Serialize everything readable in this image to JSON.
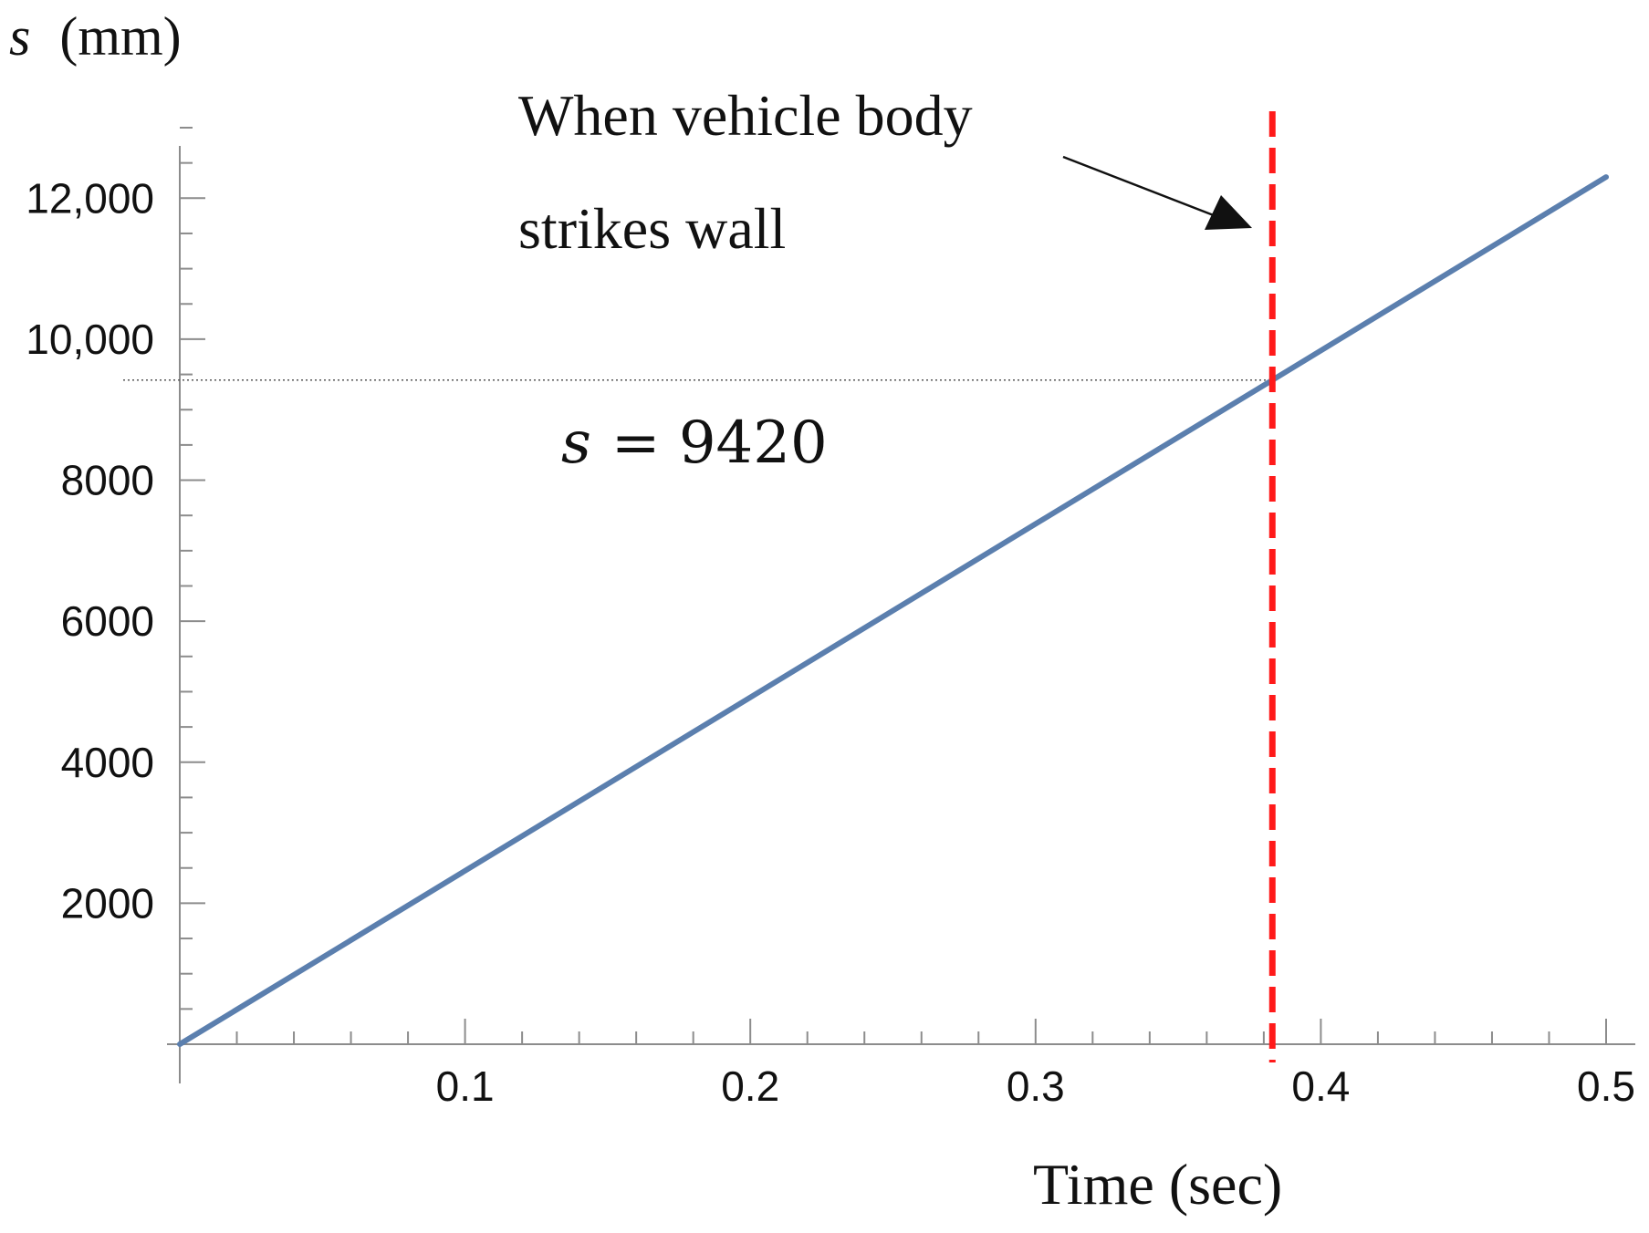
{
  "chart_data": {
    "type": "line",
    "title": "",
    "xlabel": "Time (sec)",
    "ylabel_symbol": "s",
    "ylabel_unit": "(mm)",
    "xlim": [
      0,
      0.5
    ],
    "ylim": [
      0,
      13000
    ],
    "x_ticks": [
      {
        "value": 0.1,
        "label": "0.1"
      },
      {
        "value": 0.2,
        "label": "0.2"
      },
      {
        "value": 0.3,
        "label": "0.3"
      },
      {
        "value": 0.4,
        "label": "0.4"
      },
      {
        "value": 0.5,
        "label": "0.5"
      }
    ],
    "y_ticks": [
      {
        "value": 2000,
        "label": "2000"
      },
      {
        "value": 4000,
        "label": "4000"
      },
      {
        "value": 6000,
        "label": "6000"
      },
      {
        "value": 8000,
        "label": "8000"
      },
      {
        "value": 10000,
        "label": "10,000"
      },
      {
        "value": 12000,
        "label": "12,000"
      }
    ],
    "grid": false,
    "legend": "none",
    "series": [
      {
        "x": [
          0,
          0.1,
          0.2,
          0.3,
          0.383,
          0.5
        ],
        "y": [
          0,
          2460,
          4920,
          7380,
          9420,
          12300
        ],
        "color": "#5b7fae"
      }
    ],
    "annotations": {
      "impact_line": {
        "x": 0.383,
        "color": "#ff1a1a",
        "style": "dashed"
      },
      "reference_line": {
        "y": 9420,
        "color": "#555555",
        "style": "dotted"
      },
      "impact_text_line1": "When  vehicle  body",
      "impact_text_line2": "strikes wall",
      "value_symbol": "s",
      "value_text": "= 9420"
    }
  }
}
